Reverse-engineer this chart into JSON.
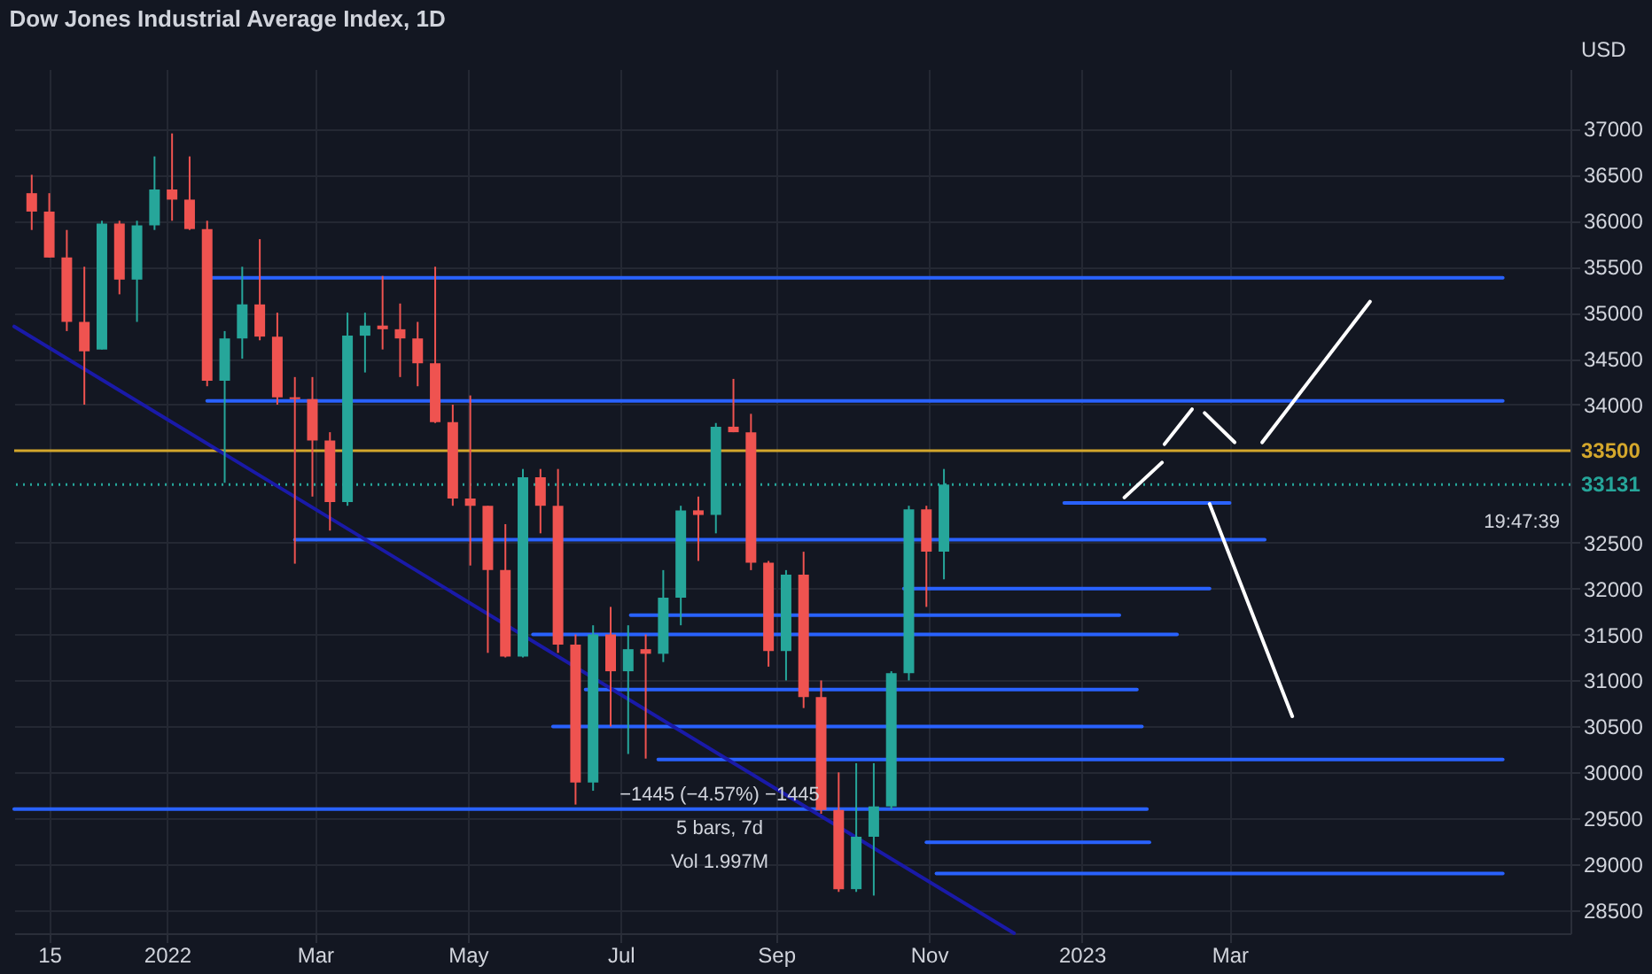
{
  "chart_data": {
    "type": "candlestick",
    "title": "Dow Jones Industrial Average Index, 1D",
    "ylabel": "USD",
    "x": [
      "2021-11-08",
      "2021-11-15",
      "2021-11-22",
      "2021-11-29",
      "2021-12-06",
      "2021-12-13",
      "2021-12-20",
      "2021-12-27",
      "2022-01-03",
      "2022-01-10",
      "2022-01-17",
      "2022-01-24",
      "2022-01-31",
      "2022-02-07",
      "2022-02-14",
      "2022-02-21",
      "2022-02-28",
      "2022-03-07",
      "2022-03-14",
      "2022-03-21",
      "2022-03-28",
      "2022-04-04",
      "2022-04-11",
      "2022-04-18",
      "2022-04-25",
      "2022-05-02",
      "2022-05-09",
      "2022-05-16",
      "2022-05-23",
      "2022-05-30",
      "2022-06-06",
      "2022-06-13",
      "2022-06-20",
      "2022-06-27",
      "2022-07-04",
      "2022-07-11",
      "2022-07-18",
      "2022-07-25",
      "2022-08-01",
      "2022-08-08",
      "2022-08-15",
      "2022-08-22",
      "2022-08-29",
      "2022-09-05",
      "2022-09-12",
      "2022-09-19",
      "2022-09-26",
      "2022-10-03",
      "2022-10-10",
      "2022-10-17",
      "2022-10-24",
      "2022-10-31",
      "2022-11-07"
    ],
    "ohlc": [
      [
        36300,
        36500,
        35900,
        36100
      ],
      [
        36100,
        36300,
        35600,
        35600
      ],
      [
        35600,
        35900,
        34800,
        34900
      ],
      [
        34900,
        35500,
        34000,
        34580
      ],
      [
        34600,
        36000,
        34600,
        35970
      ],
      [
        35970,
        36000,
        35200,
        35360
      ],
      [
        35360,
        36000,
        34900,
        35950
      ],
      [
        35950,
        36700,
        35900,
        36340
      ],
      [
        36340,
        36950,
        36000,
        36230
      ],
      [
        36230,
        36700,
        35900,
        35910
      ],
      [
        35910,
        36000,
        34200,
        34260
      ],
      [
        34260,
        34800,
        33150,
        34720
      ],
      [
        34720,
        35500,
        34500,
        35090
      ],
      [
        35090,
        35800,
        34700,
        34740
      ],
      [
        34740,
        35000,
        34000,
        34080
      ],
      [
        34080,
        34300,
        32270,
        34060
      ],
      [
        34060,
        34300,
        33000,
        33610
      ],
      [
        33610,
        33700,
        32630,
        32940
      ],
      [
        32940,
        35000,
        32900,
        34750
      ],
      [
        34750,
        35000,
        34350,
        34860
      ],
      [
        34860,
        35400,
        34600,
        34820
      ],
      [
        34820,
        35100,
        34300,
        34720
      ],
      [
        34720,
        34900,
        34200,
        34450
      ],
      [
        34450,
        35500,
        33800,
        33810
      ],
      [
        33810,
        34000,
        32900,
        32980
      ],
      [
        32980,
        34100,
        32250,
        32900
      ],
      [
        32900,
        32900,
        31300,
        32200
      ],
      [
        32200,
        32700,
        31250,
        31260
      ],
      [
        31260,
        33300,
        31250,
        33210
      ],
      [
        33210,
        33300,
        32600,
        32900
      ],
      [
        32900,
        33300,
        31300,
        31390
      ],
      [
        31390,
        31500,
        29650,
        29890
      ],
      [
        29890,
        31600,
        29800,
        31500
      ],
      [
        31500,
        31800,
        30500,
        31100
      ],
      [
        31100,
        31600,
        30200,
        31340
      ],
      [
        31340,
        31500,
        30150,
        31290
      ],
      [
        31290,
        32200,
        31200,
        31900
      ],
      [
        31900,
        32900,
        31600,
        32850
      ],
      [
        32850,
        33000,
        32300,
        32800
      ],
      [
        32800,
        33800,
        32600,
        33760
      ],
      [
        33760,
        34280,
        33700,
        33700
      ],
      [
        33700,
        33900,
        32200,
        32280
      ],
      [
        32280,
        32300,
        31150,
        31320
      ],
      [
        31320,
        32200,
        31000,
        32150
      ],
      [
        32150,
        32400,
        30700,
        30820
      ],
      [
        30820,
        31000,
        29550,
        29590
      ],
      [
        29590,
        30000,
        28700,
        28730
      ],
      [
        28730,
        30100,
        28700,
        29300
      ],
      [
        29300,
        30100,
        28660,
        29630
      ],
      [
        29630,
        31100,
        29600,
        31080
      ],
      [
        31080,
        32900,
        31000,
        32860
      ],
      [
        32860,
        32900,
        31800,
        32400
      ],
      [
        32400,
        33300,
        32100,
        33130
      ]
    ],
    "colors": [
      "#ef5350",
      "#ef5350",
      "#ef5350",
      "#ef5350",
      "#26a69a",
      "#ef5350",
      "#26a69a",
      "#26a69a",
      "#ef5350",
      "#ef5350",
      "#ef5350",
      "#26a69a",
      "#26a69a",
      "#ef5350",
      "#ef5350",
      "#ef5350",
      "#ef5350",
      "#ef5350",
      "#26a69a",
      "#26a69a",
      "#ef5350",
      "#ef5350",
      "#ef5350",
      "#ef5350",
      "#ef5350",
      "#ef5350",
      "#ef5350",
      "#ef5350",
      "#26a69a",
      "#ef5350",
      "#ef5350",
      "#ef5350",
      "#26a69a",
      "#ef5350",
      "#26a69a",
      "#ef5350",
      "#26a69a",
      "#26a69a",
      "#ef5350",
      "#26a69a",
      "#ef5350",
      "#ef5350",
      "#ef5350",
      "#26a69a",
      "#ef5350",
      "#ef5350",
      "#ef5350",
      "#26a69a",
      "#26a69a",
      "#26a69a",
      "#26a69a",
      "#ef5350",
      "#26a69a"
    ],
    "series": [
      {
        "type": "line",
        "color": "#2962ff",
        "x": [
          "2022-01-17",
          "2023-06-18"
        ],
        "values": [
          35380,
          35380
        ]
      },
      {
        "type": "line",
        "color": "#2962ff",
        "x": [
          "2022-01-17",
          "2023-06-18"
        ],
        "values": [
          34040,
          34040
        ]
      },
      {
        "type": "line",
        "color": "#2962ff",
        "x": [
          "2022-12-25",
          "2023-03-01"
        ],
        "values": [
          32930,
          32930
        ]
      },
      {
        "type": "line",
        "color": "#2962ff",
        "x": [
          "2022-02-21",
          "2023-03-15"
        ],
        "values": [
          32530,
          32530
        ]
      },
      {
        "type": "line",
        "color": "#2962ff",
        "x": [
          "2022-10-22",
          "2023-02-21"
        ],
        "values": [
          32000,
          32000
        ]
      },
      {
        "type": "line",
        "color": "#2962ff",
        "x": [
          "2022-07-05",
          "2023-01-16"
        ],
        "values": [
          31710,
          31710
        ]
      },
      {
        "type": "line",
        "color": "#2962ff",
        "x": [
          "2022-05-27",
          "2023-02-08"
        ],
        "values": [
          31500,
          31500
        ]
      },
      {
        "type": "line",
        "color": "#2962ff",
        "x": [
          "2022-06-17",
          "2023-01-23"
        ],
        "values": [
          30900,
          30900
        ]
      },
      {
        "type": "line",
        "color": "#2962ff",
        "x": [
          "2022-06-04",
          "2023-01-25"
        ],
        "values": [
          30500,
          30500
        ]
      },
      {
        "type": "line",
        "color": "#2962ff",
        "x": [
          "2022-07-16",
          "2023-06-18"
        ],
        "values": [
          30140,
          30140
        ]
      },
      {
        "type": "line",
        "color": "#2962ff",
        "x": [
          "2021-11-01",
          "2023-01-27"
        ],
        "values": [
          29600,
          29600
        ]
      },
      {
        "type": "line",
        "color": "#2962ff",
        "x": [
          "2022-10-31",
          "2023-01-28"
        ],
        "values": [
          29240,
          29240
        ]
      },
      {
        "type": "line",
        "color": "#2962ff",
        "x": [
          "2022-11-04",
          "2023-06-18"
        ],
        "values": [
          28900,
          28900
        ]
      },
      {
        "type": "line",
        "color": "#1a1aa8",
        "x": [
          "2021-11-01",
          "2022-12-05"
        ],
        "values": [
          34850,
          28250
        ]
      },
      {
        "type": "line",
        "color": "#ffffff",
        "x": [
          "2023-01-18",
          "2023-02-02"
        ],
        "values": [
          32990,
          33370
        ]
      },
      {
        "type": "line",
        "color": "#ffffff",
        "x": [
          "2023-02-03",
          "2023-02-14"
        ],
        "values": [
          33570,
          33950
        ]
      },
      {
        "type": "line",
        "color": "#ffffff",
        "x": [
          "2023-02-19",
          "2023-03-03"
        ],
        "values": [
          33910,
          33590
        ]
      },
      {
        "type": "line",
        "color": "#ffffff",
        "x": [
          "2023-03-14",
          "2023-04-26"
        ],
        "values": [
          33590,
          35120
        ]
      },
      {
        "type": "line",
        "color": "#ffffff",
        "x": [
          "2023-02-21",
          "2023-03-26"
        ],
        "values": [
          32920,
          30610
        ]
      }
    ],
    "ref_lines": [
      {
        "axis": "y",
        "value": 33500,
        "label": "33500",
        "color": "#d4a72c",
        "line_style": "solid"
      },
      {
        "axis": "y",
        "value": 33131,
        "label": "33131",
        "color": "#26a69a",
        "line_style": "dotted"
      }
    ],
    "annotations": [
      "−1445 (−4.57%) −1445",
      "5 bars, 7d",
      "Vol 1.997M",
      "19:47:39"
    ],
    "xlim": [
      "2021-11-01",
      "2023-07-15"
    ],
    "xticks": [
      {
        "value": "2021-11-15",
        "label": "15"
      },
      {
        "value": "2022-01-01",
        "label": "2022"
      },
      {
        "value": "2022-03-01",
        "label": "Mar"
      },
      {
        "value": "2022-05-01",
        "label": "May"
      },
      {
        "value": "2022-07-01",
        "label": "Jul"
      },
      {
        "value": "2022-09-01",
        "label": "Sep"
      },
      {
        "value": "2022-11-01",
        "label": "Nov"
      },
      {
        "value": "2023-01-01",
        "label": "2023"
      },
      {
        "value": "2023-03-01",
        "label": "Mar"
      }
    ],
    "ylim": [
      28250,
      37650
    ],
    "yticks": [
      28500,
      29000,
      29500,
      30000,
      30500,
      31000,
      31500,
      32000,
      32500,
      34000,
      34500,
      35000,
      35500,
      36000,
      36500,
      37000
    ],
    "grid": true
  }
}
